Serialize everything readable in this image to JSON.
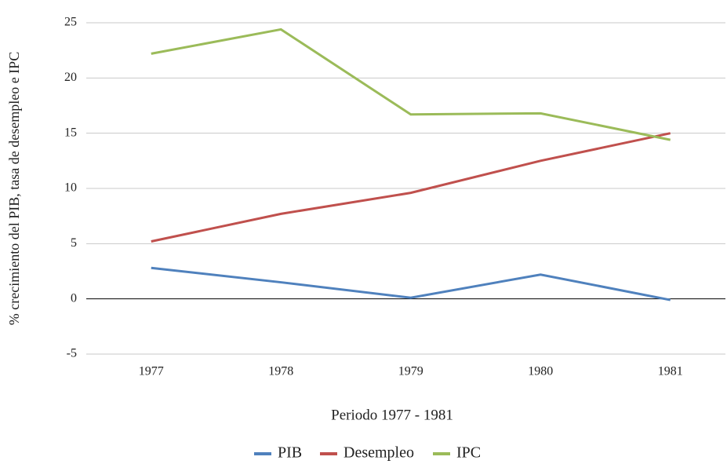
{
  "chart_data": {
    "type": "line",
    "x_label": "Periodo 1977 - 1981",
    "y_label": "% crecimiento del PIB, tasa de desempleo e IPC",
    "categories": [
      "1977",
      "1978",
      "1979",
      "1980",
      "1981"
    ],
    "series": [
      {
        "name": "PIB",
        "color": "#4f81bd",
        "values": [
          2.8,
          1.5,
          0.1,
          2.2,
          -0.1
        ]
      },
      {
        "name": "Desempleo",
        "color": "#c0504d",
        "values": [
          5.2,
          7.7,
          9.6,
          12.5,
          15.0
        ]
      },
      {
        "name": "IPC",
        "color": "#9bbb59",
        "values": [
          22.2,
          24.4,
          16.7,
          16.8,
          14.4
        ]
      }
    ],
    "ylim": [
      -5,
      25
    ],
    "yticks": [
      -5,
      0,
      5,
      10,
      15,
      20,
      25
    ],
    "grid": true,
    "legend": "bottom"
  }
}
